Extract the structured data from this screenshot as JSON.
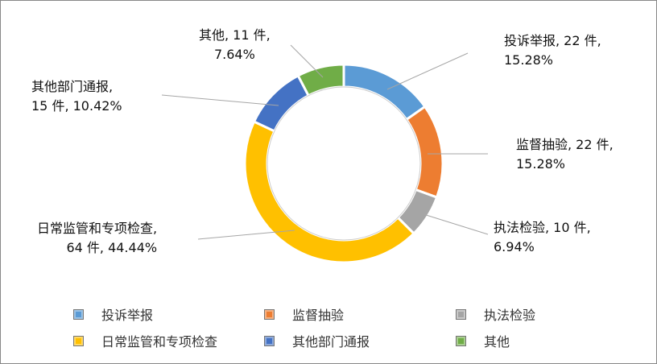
{
  "chart_data": {
    "type": "pie",
    "subtype": "donut",
    "categories": [
      "投诉举报",
      "监督抽验",
      "执法检验",
      "日常监管和专项检查",
      "其他部门通报",
      "其他"
    ],
    "values": [
      22,
      22,
      10,
      64,
      15,
      11
    ],
    "percents": [
      "15.28%",
      "15.28%",
      "6.94%",
      "44.44%",
      "10.42%",
      "7.64%"
    ],
    "colors": [
      "#5B9BD5",
      "#ED7D31",
      "#A5A5A5",
      "#FFC000",
      "#4472C4",
      "#70AD47"
    ],
    "data_labels": [
      [
        "投诉举报, 22 件,",
        "15.28%"
      ],
      [
        "监督抽验, 22 件,",
        "15.28%"
      ],
      [
        "执法检验, 10 件,",
        "6.94%"
      ],
      [
        "日常监管和专项检查,",
        "64 件, 44.44%"
      ],
      [
        "其他部门通报,",
        "15 件, 10.42%"
      ],
      [
        "其他, 11 件,",
        "7.64%"
      ]
    ],
    "legend": {
      "position": "bottom",
      "items": [
        "投诉举报",
        "监督抽验",
        "执法检验",
        "日常监管和专项检查",
        "其他部门通报",
        "其他"
      ]
    }
  }
}
